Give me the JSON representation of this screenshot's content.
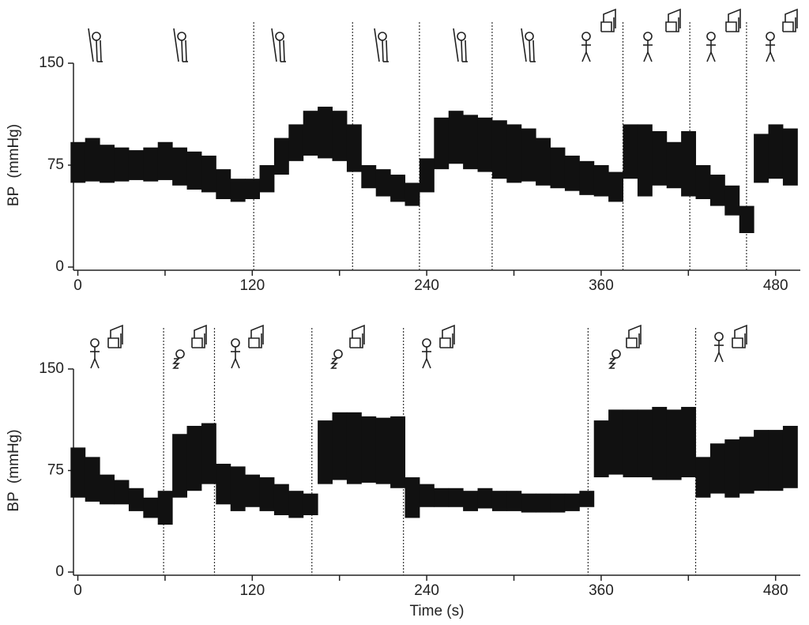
{
  "chart_data": [
    {
      "type": "range",
      "ylabel": "BP  (mmHg)",
      "color": "#111",
      "xlim": [
        -3,
        497
      ],
      "xticks": [
        0,
        120,
        240,
        360,
        480
      ],
      "xminorticks": [
        60,
        180,
        300,
        420
      ],
      "ylim": [
        0,
        150
      ],
      "yticks": [
        0,
        75,
        150
      ],
      "events": [
        121,
        189,
        235,
        285,
        375,
        421,
        460
      ],
      "x": [
        0,
        10,
        20,
        30,
        40,
        50,
        60,
        70,
        80,
        90,
        100,
        110,
        120,
        130,
        140,
        150,
        160,
        170,
        180,
        190,
        200,
        210,
        220,
        230,
        240,
        250,
        260,
        270,
        280,
        290,
        300,
        310,
        320,
        330,
        340,
        350,
        360,
        370,
        380,
        390,
        400,
        410,
        420,
        430,
        440,
        450,
        460,
        470,
        480,
        490
      ],
      "y_high": [
        92,
        95,
        90,
        88,
        86,
        88,
        92,
        88,
        85,
        82,
        72,
        65,
        65,
        75,
        95,
        105,
        115,
        118,
        115,
        105,
        75,
        72,
        68,
        62,
        80,
        110,
        115,
        112,
        110,
        108,
        105,
        102,
        95,
        88,
        82,
        78,
        75,
        70,
        105,
        105,
        100,
        92,
        100,
        75,
        68,
        60,
        45,
        98,
        105,
        102
      ],
      "y_low": [
        62,
        63,
        62,
        63,
        64,
        63,
        64,
        60,
        57,
        55,
        50,
        48,
        50,
        55,
        68,
        78,
        82,
        80,
        78,
        70,
        58,
        52,
        48,
        45,
        55,
        72,
        76,
        72,
        70,
        65,
        62,
        63,
        60,
        58,
        56,
        53,
        52,
        48,
        65,
        52,
        60,
        58,
        52,
        50,
        45,
        38,
        25,
        62,
        65,
        60
      ]
    },
    {
      "type": "range",
      "ylabel": "BP  (mmHg)",
      "xlabel": "Time (s)",
      "color": "#111",
      "xlim": [
        -3,
        497
      ],
      "xticks": [
        0,
        120,
        240,
        360,
        480
      ],
      "xminorticks": [
        60,
        180,
        300,
        420
      ],
      "ylim": [
        0,
        150
      ],
      "yticks": [
        0,
        75,
        150
      ],
      "events": [
        59,
        94,
        161,
        224,
        351,
        425
      ],
      "x": [
        0,
        10,
        20,
        30,
        40,
        50,
        60,
        70,
        80,
        90,
        100,
        110,
        120,
        130,
        140,
        150,
        160,
        170,
        180,
        190,
        200,
        210,
        220,
        230,
        240,
        250,
        260,
        270,
        280,
        290,
        300,
        310,
        320,
        330,
        340,
        350,
        360,
        370,
        380,
        390,
        400,
        410,
        420,
        430,
        440,
        450,
        460,
        470,
        480,
        490
      ],
      "y_high": [
        92,
        85,
        72,
        68,
        62,
        55,
        60,
        102,
        108,
        110,
        80,
        78,
        72,
        70,
        65,
        60,
        58,
        112,
        118,
        118,
        115,
        114,
        115,
        70,
        65,
        62,
        62,
        60,
        62,
        60,
        60,
        58,
        58,
        58,
        58,
        60,
        112,
        120,
        120,
        120,
        122,
        120,
        122,
        85,
        95,
        98,
        100,
        105,
        105,
        108
      ],
      "y_low": [
        55,
        52,
        50,
        50,
        45,
        40,
        35,
        55,
        60,
        65,
        50,
        45,
        48,
        45,
        42,
        40,
        42,
        65,
        68,
        65,
        66,
        65,
        62,
        40,
        48,
        48,
        48,
        45,
        47,
        45,
        45,
        44,
        44,
        44,
        45,
        48,
        70,
        72,
        70,
        70,
        68,
        68,
        70,
        55,
        58,
        55,
        58,
        60,
        60,
        62
      ]
    }
  ]
}
